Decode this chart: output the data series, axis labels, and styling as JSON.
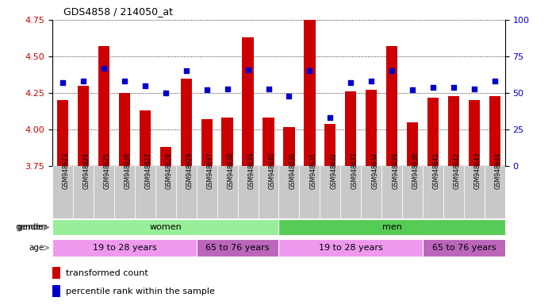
{
  "title": "GDS4858 / 214050_at",
  "categories": [
    "GSM948623",
    "GSM948624",
    "GSM948625",
    "GSM948626",
    "GSM948627",
    "GSM948628",
    "GSM948629",
    "GSM948637",
    "GSM948638",
    "GSM948639",
    "GSM948640",
    "GSM948630",
    "GSM948631",
    "GSM948632",
    "GSM948633",
    "GSM948634",
    "GSM948635",
    "GSM948636",
    "GSM948641",
    "GSM948642",
    "GSM948643",
    "GSM948644"
  ],
  "bar_values": [
    4.2,
    4.3,
    4.57,
    4.25,
    4.13,
    3.88,
    4.35,
    4.07,
    4.08,
    4.63,
    4.08,
    4.02,
    4.76,
    4.04,
    4.26,
    4.27,
    4.57,
    4.05,
    4.22,
    4.23,
    4.2,
    4.23
  ],
  "percentile_values": [
    57,
    58,
    67,
    58,
    55,
    50,
    65,
    52,
    53,
    66,
    53,
    48,
    65,
    33,
    57,
    58,
    65,
    52,
    54,
    54,
    53,
    58
  ],
  "ymin": 3.75,
  "ymax": 4.75,
  "y2min": 0,
  "y2max": 100,
  "yticks": [
    3.75,
    4.0,
    4.25,
    4.5,
    4.75
  ],
  "y2ticks": [
    0,
    25,
    50,
    75,
    100
  ],
  "bar_color": "#CC0000",
  "dot_color": "#0000CC",
  "gender_groups": [
    {
      "label": "women",
      "start": 0,
      "end": 11,
      "color": "#99EE99"
    },
    {
      "label": "men",
      "start": 11,
      "end": 22,
      "color": "#55CC55"
    }
  ],
  "age_groups": [
    {
      "label": "19 to 28 years",
      "start": 0,
      "end": 7,
      "color": "#EE99EE"
    },
    {
      "label": "65 to 76 years",
      "start": 7,
      "end": 11,
      "color": "#BB66BB"
    },
    {
      "label": "19 to 28 years",
      "start": 11,
      "end": 18,
      "color": "#EE99EE"
    },
    {
      "label": "65 to 76 years",
      "start": 18,
      "end": 22,
      "color": "#BB66BB"
    }
  ],
  "legend_red_label": "transformed count",
  "legend_blue_label": "percentile rank within the sample"
}
